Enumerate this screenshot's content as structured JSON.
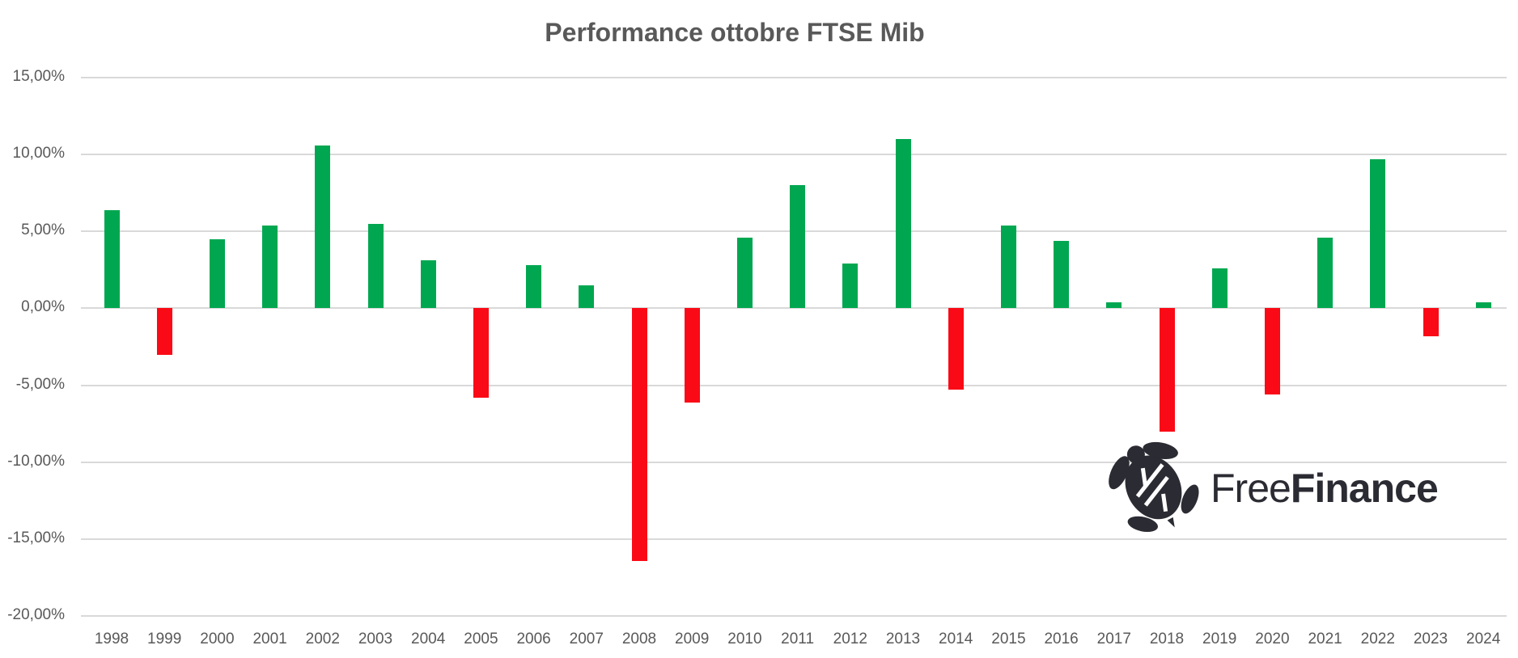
{
  "title": "Performance ottobre FTSE Mib",
  "chart_data": {
    "type": "bar",
    "title": "Performance ottobre FTSE Mib",
    "categories": [
      "1998",
      "1999",
      "2000",
      "2001",
      "2002",
      "2003",
      "2004",
      "2005",
      "2006",
      "2007",
      "2008",
      "2009",
      "2010",
      "2011",
      "2012",
      "2013",
      "2014",
      "2015",
      "2016",
      "2017",
      "2018",
      "2019",
      "2020",
      "2021",
      "2022",
      "2023",
      "2024"
    ],
    "values": [
      6.4,
      -3.0,
      4.5,
      5.4,
      10.6,
      5.5,
      3.1,
      -5.8,
      2.8,
      1.5,
      -16.4,
      -6.1,
      4.6,
      8.0,
      2.9,
      11.0,
      -5.3,
      5.4,
      4.4,
      0.4,
      -8.0,
      2.6,
      -5.6,
      4.6,
      9.7,
      -1.8,
      0.4
    ],
    "xlabel": "",
    "ylabel": "",
    "ylim": [
      -20,
      15
    ],
    "yticks": [
      15,
      10,
      5,
      0,
      -5,
      -10,
      -15,
      -20
    ],
    "ytick_labels": [
      "15,00%",
      "10,00%",
      "5,00%",
      "0,00%",
      "-5,00%",
      "-10,00%",
      "-15,00%",
      "-20,00%"
    ],
    "grid": true,
    "legend_position": "none",
    "positive_color": "#00a750",
    "negative_color": "#fa0a16"
  },
  "colors": {
    "text": "#595959",
    "gridline": "#d9d9d9",
    "logo": "#2b2b33",
    "background": "#ffffff"
  },
  "logo": {
    "icon": "turtle-icon",
    "brand_free": "Free",
    "brand_finance": "Finance"
  }
}
